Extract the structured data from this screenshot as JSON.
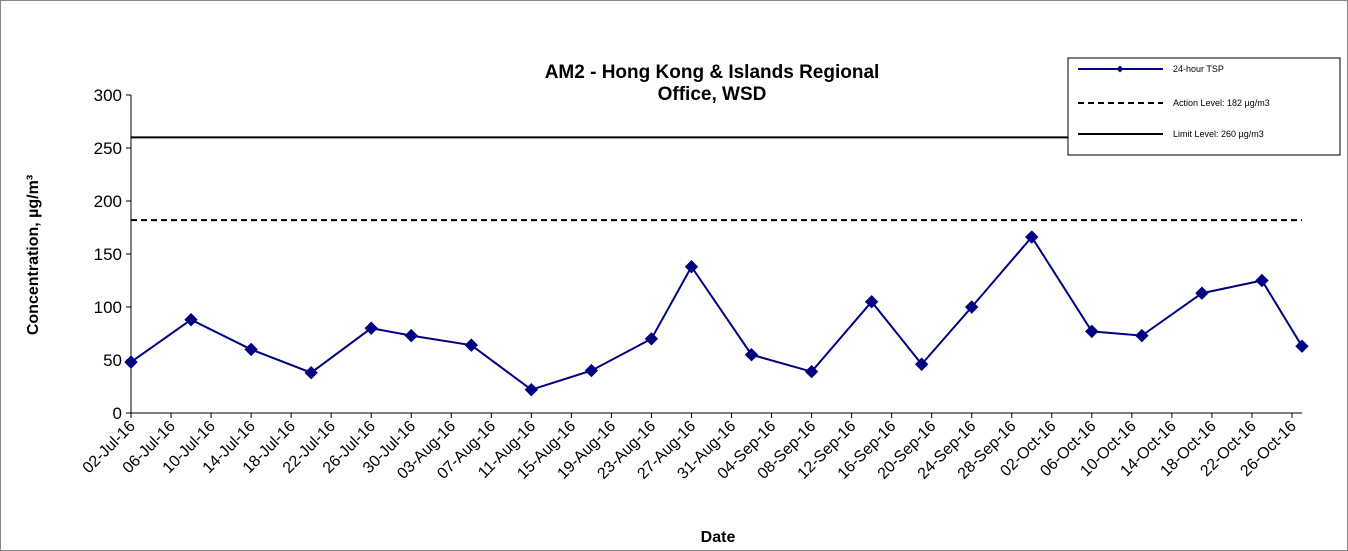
{
  "chart_data": {
    "type": "line",
    "title_lines": [
      "AM2 - Hong Kong & Islands Regional",
      "Office, WSD"
    ],
    "xlabel": "Date",
    "ylabel": "Concentration, µg/m³",
    "ylim": [
      0,
      300
    ],
    "yticks": [
      0,
      50,
      100,
      150,
      200,
      250,
      300
    ],
    "xlim": [
      "2016-07-02",
      "2016-10-27"
    ],
    "x_tick_labels": [
      "02-Jul-16",
      "06-Jul-16",
      "10-Jul-16",
      "14-Jul-16",
      "18-Jul-16",
      "22-Jul-16",
      "26-Jul-16",
      "30-Jul-16",
      "03-Aug-16",
      "07-Aug-16",
      "11-Aug-16",
      "15-Aug-16",
      "19-Aug-16",
      "23-Aug-16",
      "27-Aug-16",
      "31-Aug-16",
      "04-Sep-16",
      "08-Sep-16",
      "12-Sep-16",
      "16-Sep-16",
      "20-Sep-16",
      "24-Sep-16",
      "28-Sep-16",
      "02-Oct-16",
      "06-Oct-16",
      "10-Oct-16",
      "14-Oct-16",
      "18-Oct-16",
      "22-Oct-16",
      "26-Oct-16"
    ],
    "grid": false,
    "legend_position": "top-right",
    "series": [
      {
        "name": "24-hour TSP",
        "color": "#000080",
        "style": "line-diamond",
        "x": [
          "2016-07-02",
          "2016-07-08",
          "2016-07-14",
          "2016-07-20",
          "2016-07-26",
          "2016-07-30",
          "2016-08-05",
          "2016-08-11",
          "2016-08-17",
          "2016-08-23",
          "2016-08-27",
          "2016-09-02",
          "2016-09-08",
          "2016-09-14",
          "2016-09-19",
          "2016-09-24",
          "2016-09-30",
          "2016-10-06",
          "2016-10-11",
          "2016-10-17",
          "2016-10-23",
          "2016-10-27"
        ],
        "values": [
          48,
          88,
          60,
          38,
          80,
          73,
          64,
          22,
          40,
          70,
          138,
          55,
          39,
          105,
          46,
          100,
          166,
          77,
          73,
          113,
          125,
          63
        ]
      },
      {
        "name": "Action Level: 182 µg/m3",
        "color": "#000000",
        "style": "dashed",
        "constant": 182
      },
      {
        "name": "Limit Level: 260 µg/m3",
        "color": "#000000",
        "style": "solid",
        "constant": 260
      }
    ]
  }
}
